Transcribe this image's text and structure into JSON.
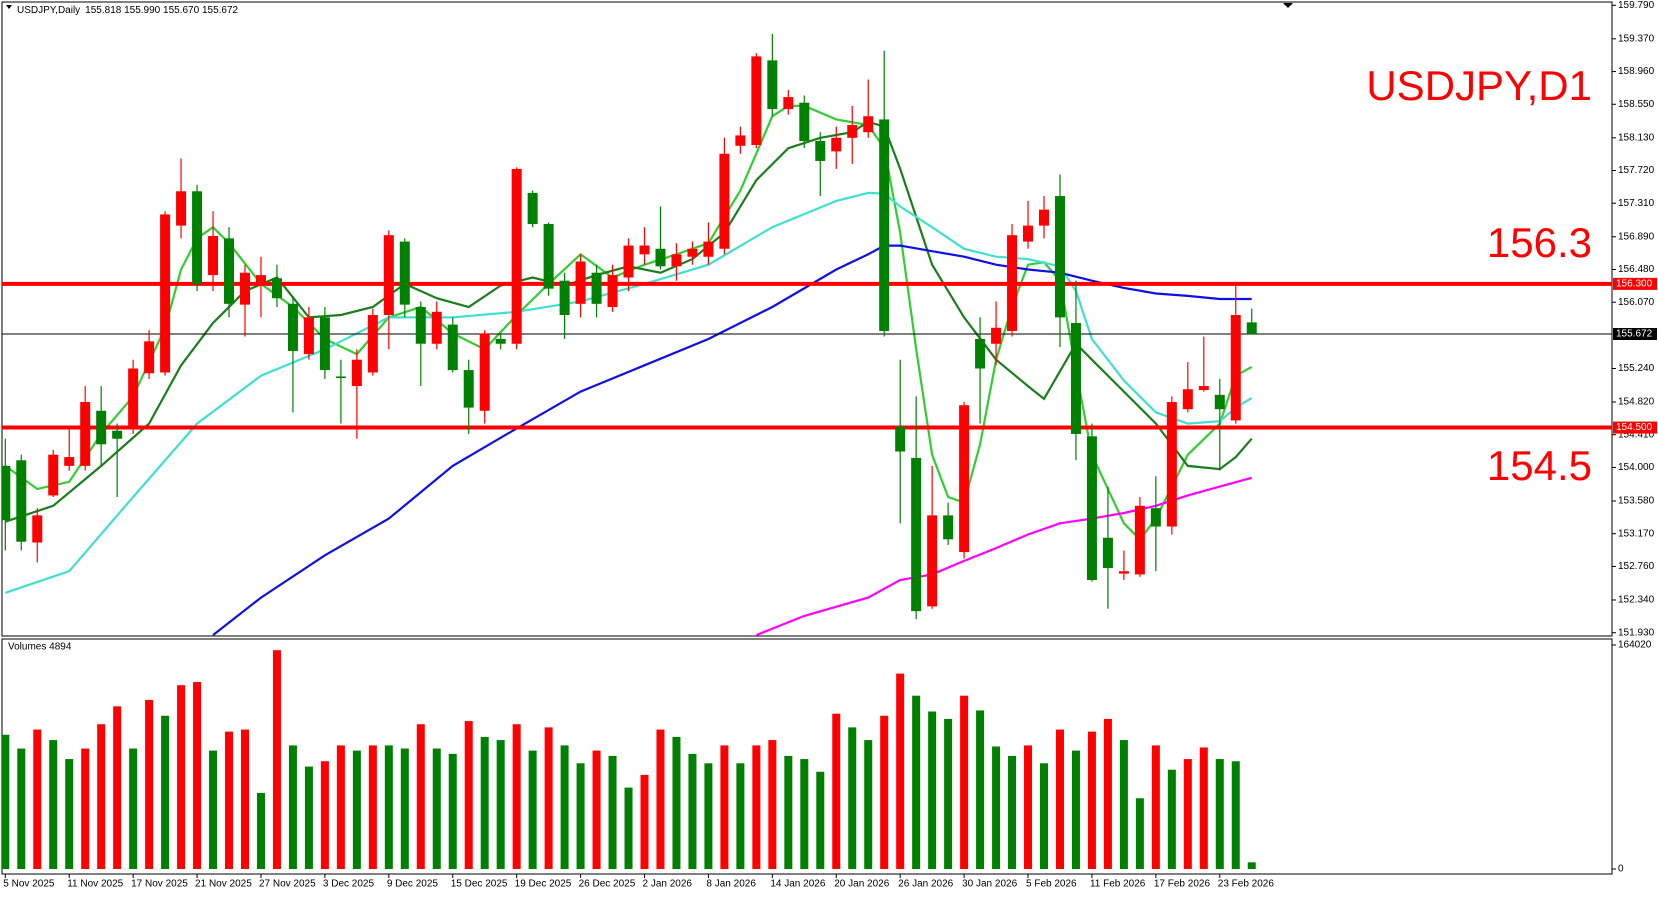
{
  "chart_data": [
    {
      "type": "candlestick",
      "title": "USDJPY,Daily",
      "ohlc_text": "155.818 155.990 155.670 155.672",
      "corner_label": "USDJPY,D1",
      "annotations": [
        "156.3",
        "154.5"
      ],
      "up_color": "#ff0000",
      "down_color": "#008000",
      "open": [
        154.02,
        154.09,
        153.06,
        153.65,
        154.02,
        154.02,
        154.71,
        154.46,
        154.49,
        155.18,
        155.19,
        157.03,
        157.46,
        156.41,
        156.87,
        156.04,
        156.3,
        156.37,
        156.05,
        155.42,
        155.88,
        155.14,
        155.02,
        155.19,
        155.91,
        156.83,
        156.01,
        155.55,
        155.79,
        155.22,
        154.71,
        155.61,
        155.55,
        157.44,
        157.05,
        156.34,
        156.05,
        156.44,
        156.01,
        156.38,
        156.67,
        156.74,
        156.52,
        156.64,
        156.64,
        156.74,
        158.03,
        158.04,
        159.1,
        158.49,
        158.57,
        158.09,
        157.96,
        158.13,
        158.2,
        158.36,
        154.51,
        154.12,
        152.26,
        153.4,
        152.94,
        155.61,
        155.55,
        155.71,
        156.83,
        157.03,
        157.4,
        155.81,
        154.39,
        153.12,
        152.67,
        152.66,
        153.49,
        153.26,
        154.73,
        154.97,
        154.91,
        154.59,
        155.818
      ],
      "high": [
        154.36,
        154.16,
        153.49,
        154.22,
        154.49,
        155.02,
        155.02,
        154.55,
        155.35,
        155.72,
        157.21,
        157.87,
        157.54,
        157.21,
        157.01,
        156.54,
        156.64,
        156.54,
        156.15,
        156.01,
        156.01,
        155.35,
        155.48,
        155.99,
        156.97,
        156.87,
        156.08,
        156.08,
        155.88,
        155.35,
        155.72,
        155.68,
        157.76,
        157.47,
        157.07,
        156.44,
        156.67,
        156.54,
        156.54,
        156.87,
        157.01,
        157.27,
        156.81,
        156.83,
        157.07,
        158.13,
        158.27,
        159.19,
        159.43,
        158.73,
        158.66,
        158.2,
        158.27,
        158.53,
        158.86,
        159.22,
        155.35,
        154.89,
        154.02,
        153.56,
        154.82,
        155.88,
        156.08,
        157.05,
        157.34,
        157.4,
        157.67,
        156.34,
        154.55,
        153.76,
        152.96,
        153.63,
        153.89,
        154.89,
        155.32,
        155.64,
        155.11,
        156.3,
        155.99
      ],
      "low": [
        152.96,
        152.96,
        152.81,
        153.63,
        153.96,
        153.96,
        154.02,
        153.63,
        154.42,
        155.11,
        155.15,
        156.87,
        156.21,
        156.21,
        155.88,
        155.64,
        155.88,
        156.01,
        154.69,
        155.35,
        155.11,
        154.55,
        154.36,
        155.15,
        155.48,
        155.88,
        155.02,
        155.48,
        155.19,
        154.42,
        154.55,
        155.48,
        155.48,
        157.01,
        156.15,
        155.61,
        155.88,
        155.88,
        155.95,
        156.21,
        156.54,
        156.48,
        156.34,
        156.54,
        156.54,
        156.67,
        157.93,
        158.0,
        158.4,
        158.42,
        158.0,
        157.4,
        157.74,
        157.8,
        158.13,
        155.64,
        153.3,
        152.1,
        152.23,
        153.03,
        152.86,
        154.55,
        155.28,
        155.64,
        156.74,
        156.87,
        155.51,
        154.09,
        152.57,
        152.23,
        152.59,
        152.63,
        152.7,
        153.16,
        154.69,
        154.95,
        153.96,
        154.55,
        155.67
      ],
      "close": [
        153.34,
        153.07,
        153.4,
        154.16,
        154.13,
        154.82,
        154.29,
        154.36,
        155.24,
        155.58,
        157.17,
        157.46,
        156.3,
        156.9,
        156.05,
        156.44,
        156.41,
        156.12,
        155.46,
        155.88,
        155.22,
        155.12,
        155.35,
        155.91,
        156.91,
        156.04,
        155.55,
        155.95,
        155.22,
        154.75,
        155.68,
        155.55,
        157.74,
        157.05,
        156.24,
        155.91,
        156.58,
        156.05,
        156.41,
        156.78,
        156.78,
        156.52,
        156.67,
        156.74,
        156.83,
        157.93,
        158.16,
        159.15,
        158.49,
        158.64,
        158.09,
        157.84,
        158.13,
        158.29,
        158.4,
        155.71,
        154.2,
        152.2,
        153.4,
        153.1,
        154.78,
        155.24,
        155.75,
        156.91,
        157.03,
        157.23,
        155.88,
        154.42,
        152.59,
        152.74,
        152.7,
        153.52,
        153.26,
        154.82,
        154.98,
        155.02,
        154.73,
        155.91,
        155.672
      ],
      "lines": [
        {
          "color": "#33cc33",
          "x": [
            0,
            2,
            4,
            6,
            8,
            10,
            11,
            12,
            13,
            14,
            16,
            18,
            20,
            22,
            24,
            26,
            28,
            30,
            32,
            34,
            36,
            38,
            40,
            42,
            44,
            46,
            48,
            49,
            50,
            52,
            54,
            55,
            56,
            57,
            58,
            59,
            60,
            61,
            62,
            63,
            64,
            65,
            66,
            67,
            68,
            70,
            71,
            72,
            74,
            76,
            77,
            78
          ],
          "values": [
            154.02,
            153.73,
            153.82,
            154.42,
            154.89,
            155.75,
            156.48,
            156.87,
            157.01,
            156.81,
            156.3,
            156.01,
            155.61,
            155.42,
            155.88,
            156.01,
            155.68,
            155.48,
            155.91,
            156.3,
            156.67,
            156.38,
            156.54,
            156.67,
            156.81,
            157.47,
            158.4,
            158.53,
            158.53,
            158.36,
            158.29,
            158.0,
            156.94,
            155.48,
            154.16,
            153.63,
            153.56,
            154.29,
            155.35,
            156.01,
            156.54,
            156.57,
            156.34,
            155.22,
            154.16,
            153.3,
            153.1,
            153.36,
            154.16,
            154.55,
            155.15,
            155.26
          ]
        },
        {
          "color": "#1a7f1a",
          "x": [
            0,
            3,
            6,
            9,
            11,
            13,
            15,
            17,
            19,
            21,
            23,
            25,
            27,
            29,
            31,
            33,
            35,
            37,
            39,
            41,
            43,
            45,
            47,
            49,
            51,
            53,
            54,
            55,
            56,
            58,
            60,
            62,
            64,
            65,
            67,
            68,
            70,
            72,
            74,
            76,
            77,
            78
          ],
          "values": [
            153.32,
            153.52,
            154.02,
            154.55,
            155.28,
            155.81,
            156.21,
            156.38,
            155.88,
            155.91,
            156.01,
            156.3,
            156.12,
            156.01,
            156.28,
            156.38,
            156.28,
            156.41,
            156.52,
            156.44,
            156.61,
            156.94,
            157.6,
            158.0,
            158.13,
            158.2,
            158.33,
            158.27,
            157.74,
            156.54,
            155.88,
            155.35,
            155.02,
            154.86,
            155.55,
            155.35,
            154.95,
            154.55,
            154.02,
            153.98,
            154.13,
            154.36
          ]
        },
        {
          "color": "#40e0d0",
          "x": [
            0,
            4,
            8,
            12,
            16,
            20,
            24,
            28,
            32,
            36,
            40,
            44,
            48,
            52,
            54,
            55,
            56,
            58,
            60,
            62,
            64,
            66,
            67,
            68,
            70,
            72,
            74,
            76,
            77,
            78
          ],
          "values": [
            152.43,
            152.7,
            153.63,
            154.55,
            155.15,
            155.48,
            155.88,
            155.88,
            155.95,
            156.08,
            156.3,
            156.54,
            157.01,
            157.34,
            157.44,
            157.43,
            157.27,
            157.01,
            156.74,
            156.64,
            156.61,
            156.52,
            156.21,
            155.61,
            155.09,
            154.69,
            154.55,
            154.58,
            154.75,
            154.87
          ]
        },
        {
          "color": "#1010e0",
          "x": [
            13,
            16,
            20,
            24,
            28,
            32,
            36,
            40,
            44,
            48,
            52,
            54,
            55,
            56,
            58,
            60,
            62,
            64,
            66,
            68,
            70,
            72,
            74,
            76,
            78
          ],
          "values": [
            151.9,
            152.37,
            152.9,
            153.36,
            154.02,
            154.49,
            154.95,
            155.28,
            155.61,
            156.01,
            156.48,
            156.67,
            156.78,
            156.78,
            156.71,
            156.64,
            156.54,
            156.48,
            156.44,
            156.34,
            156.25,
            156.18,
            156.15,
            156.11,
            156.11
          ]
        },
        {
          "color": "#ff00ff",
          "x": [
            47,
            50,
            54,
            56,
            58,
            60,
            62,
            64,
            66,
            68,
            70,
            72,
            74,
            76,
            78
          ],
          "values": [
            151.9,
            152.14,
            152.37,
            152.59,
            152.66,
            152.83,
            152.99,
            153.16,
            153.3,
            153.36,
            153.43,
            153.52,
            153.65,
            153.76,
            153.87
          ]
        }
      ],
      "hlines": [
        {
          "value": 156.3,
          "label": "156.300",
          "color": "#ff0000"
        },
        {
          "value": 154.5,
          "label": "154.500",
          "color": "#ff0000"
        }
      ],
      "last_price": {
        "value": 155.672,
        "label": "155.672",
        "color": "#000000"
      },
      "ylim": [
        151.93,
        159.79
      ],
      "yticks": [
        {
          "value": 159.79,
          "label": "159.790"
        },
        {
          "value": 159.37,
          "label": "159.370"
        },
        {
          "value": 158.96,
          "label": "158.960"
        },
        {
          "value": 158.55,
          "label": "158.550"
        },
        {
          "value": 158.13,
          "label": "158.130"
        },
        {
          "value": 157.72,
          "label": "157.720"
        },
        {
          "value": 157.31,
          "label": "157.310"
        },
        {
          "value": 156.89,
          "label": "156.890"
        },
        {
          "value": 156.48,
          "label": "156.480"
        },
        {
          "value": 156.07,
          "label": "156.070"
        },
        {
          "value": 155.24,
          "label": "155.240"
        },
        {
          "value": 154.82,
          "label": "154.820"
        },
        {
          "value": 154.41,
          "label": "154.410"
        },
        {
          "value": 154.0,
          "label": "154.000"
        },
        {
          "value": 153.58,
          "label": "153.580"
        },
        {
          "value": 153.17,
          "label": "153.170"
        },
        {
          "value": 152.76,
          "label": "152.760"
        },
        {
          "value": 152.34,
          "label": "152.340"
        },
        {
          "value": 151.93,
          "label": "151.930"
        }
      ]
    },
    {
      "type": "bar",
      "title": "Volumes 4894",
      "up_color": "#ff0000",
      "down_color": "#008000",
      "categories": [
        "5 Nov 2025",
        null,
        null,
        null,
        "11 Nov 2025",
        null,
        null,
        null,
        "17 Nov 2025",
        null,
        null,
        null,
        "21 Nov 2025",
        null,
        null,
        null,
        "27 Nov 2025",
        null,
        null,
        null,
        "3 Dec 2025",
        null,
        null,
        null,
        "9 Dec 2025",
        null,
        null,
        null,
        "15 Dec 2025",
        null,
        null,
        null,
        "19 Dec 2025",
        null,
        null,
        null,
        "26 Dec 2025",
        null,
        null,
        null,
        "2 Jan 2026",
        null,
        null,
        null,
        "8 Jan 2026",
        null,
        null,
        null,
        "14 Jan 2026",
        null,
        null,
        null,
        "20 Jan 2026",
        null,
        null,
        null,
        "26 Jan 2026",
        null,
        null,
        null,
        "30 Jan 2026",
        null,
        null,
        null,
        "5 Feb 2026",
        null,
        null,
        null,
        "11 Feb 2026",
        null,
        null,
        null,
        "17 Feb 2026",
        null,
        null,
        null,
        "23 Feb 2026",
        null,
        null
      ],
      "values": [
        98300,
        88200,
        102100,
        94400,
        80500,
        88200,
        106000,
        119100,
        88200,
        123800,
        112200,
        134600,
        136900,
        86700,
        100600,
        102100,
        55700,
        160200,
        90500,
        75000,
        78900,
        90500,
        86700,
        90500,
        90500,
        88200,
        106000,
        88200,
        84300,
        108300,
        96700,
        94400,
        106000,
        86700,
        103700,
        90500,
        77400,
        86700,
        82800,
        59600,
        68900,
        102100,
        96700,
        84300,
        77400,
        90500,
        77400,
        90500,
        94400,
        82800,
        80500,
        71200,
        113700,
        103700,
        94400,
        112200,
        143100,
        126900,
        115300,
        109900,
        126900,
        116100,
        89700,
        82800,
        90500,
        77400,
        102100,
        86700,
        100600,
        109900,
        94400,
        51800,
        90500,
        72700,
        80500,
        89000,
        80500,
        78900,
        4894
      ],
      "ylim": [
        0,
        164020
      ],
      "yticks": [
        0,
        164020
      ]
    }
  ]
}
